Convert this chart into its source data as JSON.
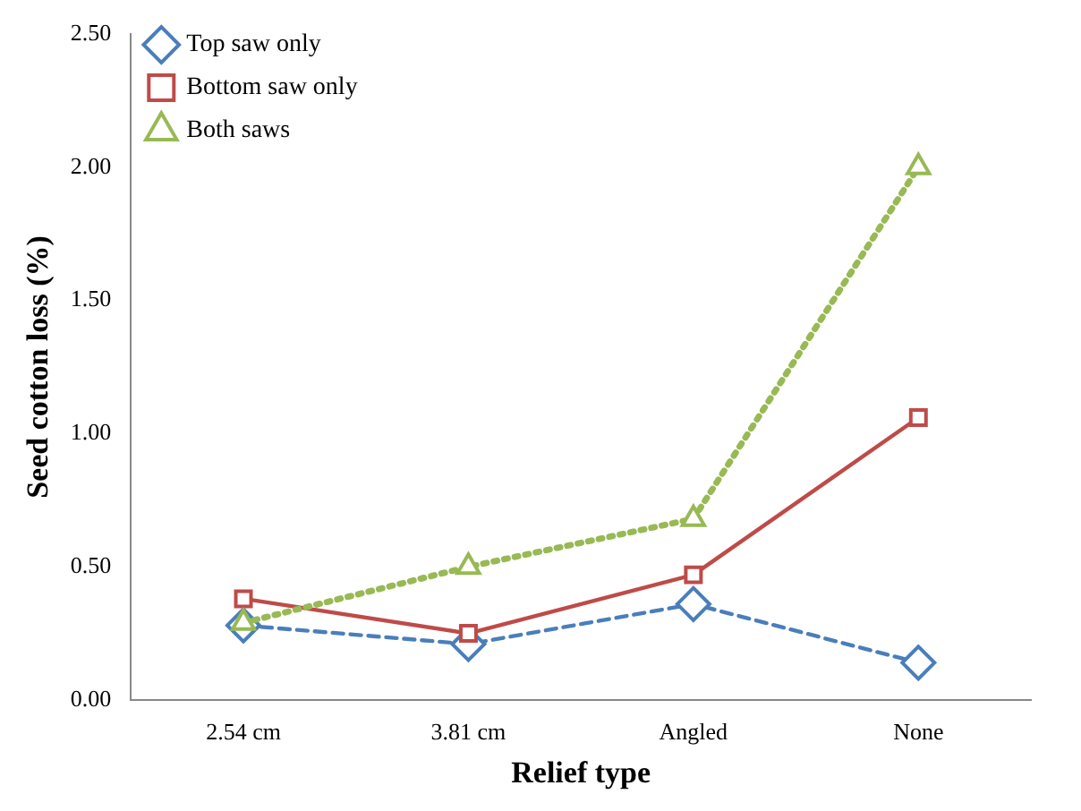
{
  "chart_data": {
    "type": "line",
    "xlabel": "Relief type",
    "ylabel": "Seed cotton loss (%)",
    "categories": [
      "2.54 cm",
      "3.81 cm",
      "Angled",
      "None"
    ],
    "series": [
      {
        "name": "Top saw only",
        "color": "#4a7ebb",
        "values": [
          0.28,
          0.21,
          0.36,
          0.14
        ],
        "marker": "diamond",
        "line_style": "dashed"
      },
      {
        "name": "Bottom saw only",
        "color": "#be4b48",
        "values": [
          0.38,
          0.25,
          0.47,
          1.06
        ],
        "marker": "square",
        "line_style": "solid"
      },
      {
        "name": "Both saws",
        "color": "#98b954",
        "values": [
          0.29,
          0.5,
          0.68,
          2.0
        ],
        "marker": "triangle",
        "line_style": "dotted"
      }
    ],
    "ylim": [
      0,
      2.5
    ],
    "yticks": [
      {
        "value": 0,
        "label": "0.00"
      },
      {
        "value": 0.5,
        "label": "0.50"
      },
      {
        "value": 1,
        "label": "1.00"
      },
      {
        "value": 1.5,
        "label": "1.50"
      },
      {
        "value": 2,
        "label": "2.00"
      },
      {
        "value": 2.5,
        "label": "2.50"
      }
    ],
    "grid": false,
    "legend": "top left"
  }
}
